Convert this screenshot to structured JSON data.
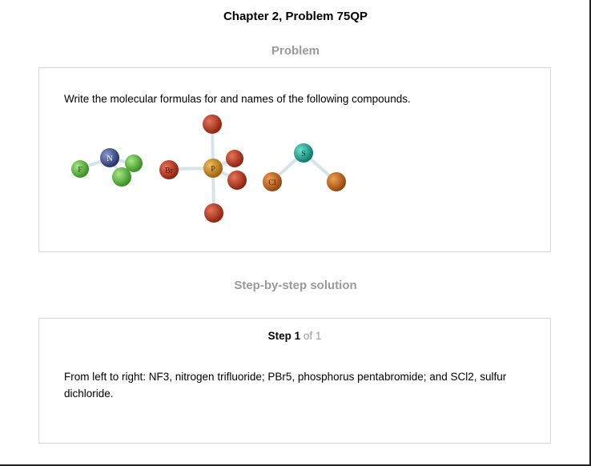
{
  "header": {
    "title": "Chapter 2, Problem 75QP"
  },
  "problem": {
    "heading": "Problem",
    "text": "Write the molecular formulas for and names of the following compounds.",
    "atom_labels": {
      "f": "F",
      "n": "N",
      "br": "Br",
      "p": "P",
      "s": "S",
      "cl": "Cl"
    },
    "colors": {
      "fluorine": "#5cb83a",
      "nitrogen": "#3f5189",
      "bromine": "#b5341c",
      "phosphorus": "#d08a1c",
      "sulfur": "#1aa896",
      "chlorine": "#c8651a",
      "bond": "#d6e4ea"
    }
  },
  "solution": {
    "heading": "Step-by-step solution",
    "step_label": "Step 1",
    "step_count": "of 1",
    "text": "From left to right: NF3, nitrogen trifluoride; PBr5, phosphorus pentabromide; and SCl2, sulfur dichloride."
  }
}
